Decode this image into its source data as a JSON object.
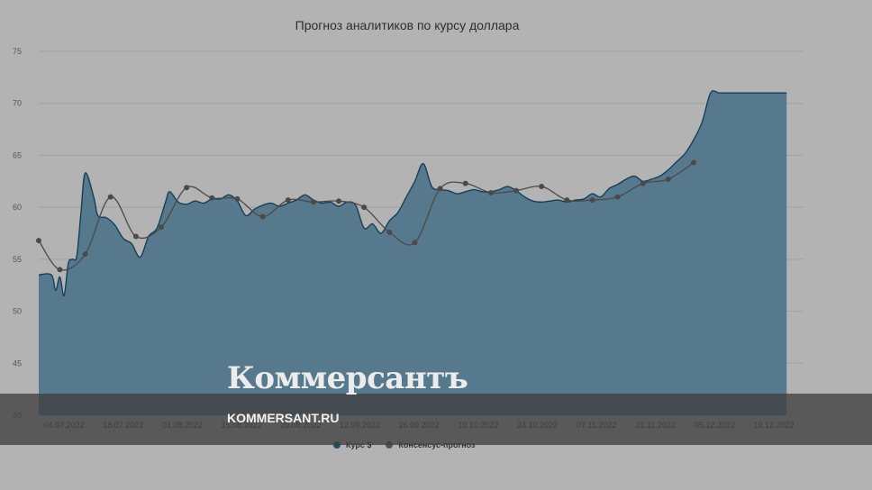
{
  "chart_data": {
    "type": "area",
    "title": "Прогноз аналитиков по курсу доллара",
    "ylim": [
      40,
      75
    ],
    "yticks": [
      40,
      45,
      50,
      55,
      60,
      65,
      70,
      75
    ],
    "grid": true,
    "legend_position": "bottom-center",
    "x_tick_labels": [
      "04.07.2022",
      "18.07.2022",
      "01.08.2022",
      "15.08.2022",
      "29.08.2022",
      "12.09.2022",
      "26.09.2022",
      "10.10.2022",
      "24.10.2022",
      "07.11.2022",
      "21.11.2022",
      "05.12.2022",
      "19.12.2022"
    ],
    "series": [
      {
        "name": "Курс $",
        "color": "#57798d",
        "x": [
          "2022-06-28",
          "2022-07-01",
          "2022-07-02",
          "2022-07-03",
          "2022-07-04",
          "2022-07-05",
          "2022-07-06",
          "2022-07-07",
          "2022-07-08",
          "2022-07-09",
          "2022-07-11",
          "2022-07-12",
          "2022-07-14",
          "2022-07-16",
          "2022-07-18",
          "2022-07-20",
          "2022-07-22",
          "2022-07-24",
          "2022-07-26",
          "2022-07-28",
          "2022-07-29",
          "2022-07-31",
          "2022-08-02",
          "2022-08-04",
          "2022-08-06",
          "2022-08-08",
          "2022-08-10",
          "2022-08-12",
          "2022-08-14",
          "2022-08-16",
          "2022-08-18",
          "2022-08-20",
          "2022-08-22",
          "2022-08-24",
          "2022-08-26",
          "2022-08-28",
          "2022-08-30",
          "2022-09-01",
          "2022-09-03",
          "2022-09-05",
          "2022-09-07",
          "2022-09-09",
          "2022-09-11",
          "2022-09-13",
          "2022-09-15",
          "2022-09-17",
          "2022-09-19",
          "2022-09-21",
          "2022-09-23",
          "2022-09-25",
          "2022-09-27",
          "2022-09-29",
          "2022-10-01",
          "2022-10-03",
          "2022-10-05",
          "2022-10-07",
          "2022-10-09",
          "2022-10-11",
          "2022-10-13",
          "2022-10-15",
          "2022-10-17",
          "2022-10-19",
          "2022-10-21",
          "2022-10-23",
          "2022-10-25",
          "2022-10-27",
          "2022-10-29",
          "2022-10-31",
          "2022-11-02",
          "2022-11-04",
          "2022-11-06",
          "2022-11-08",
          "2022-11-10",
          "2022-11-12",
          "2022-11-14",
          "2022-11-16",
          "2022-11-18",
          "2022-11-20",
          "2022-11-22",
          "2022-11-24",
          "2022-11-26",
          "2022-11-28",
          "2022-11-30",
          "2022-12-02",
          "2022-12-04",
          "2022-12-06",
          "2022-12-08",
          "2022-12-10",
          "2022-12-12",
          "2022-12-14",
          "2022-12-16",
          "2022-12-18",
          "2022-12-20",
          "2022-12-22",
          "2022-12-23"
        ],
        "values": [
          53.5,
          53.5,
          52.0,
          53.3,
          51.5,
          54.6,
          55.0,
          55.3,
          59.5,
          63.3,
          61.0,
          59.2,
          59.0,
          58.3,
          57.0,
          56.5,
          55.2,
          57.2,
          58.0,
          60.5,
          61.5,
          60.5,
          60.3,
          60.6,
          60.4,
          60.8,
          60.8,
          61.2,
          60.6,
          59.2,
          59.8,
          60.2,
          60.4,
          60.1,
          60.4,
          60.7,
          61.2,
          60.7,
          60.4,
          60.5,
          60.1,
          60.5,
          60.2,
          58.0,
          58.4,
          57.5,
          58.7,
          59.5,
          61.0,
          62.5,
          64.2,
          62.0,
          61.7,
          61.6,
          61.3,
          61.5,
          61.7,
          61.5,
          61.5,
          61.7,
          62.0,
          61.6,
          61.0,
          60.6,
          60.5,
          60.6,
          60.7,
          60.5,
          60.7,
          60.8,
          61.3,
          61.0,
          61.8,
          62.2,
          62.7,
          63.0,
          62.5,
          62.7,
          63.0,
          63.6,
          64.4,
          65.2,
          66.5,
          68.2,
          71.0,
          71.0,
          71.0,
          71.0,
          71.0,
          71.0,
          71.0,
          71.0,
          71.0,
          71.0,
          71.0
        ]
      },
      {
        "name": "Консенсус-прогноз",
        "color": "#555555",
        "x": [
          "2022-06-28",
          "2022-07-03",
          "2022-07-09",
          "2022-07-15",
          "2022-07-21",
          "2022-07-27",
          "2022-08-02",
          "2022-08-08",
          "2022-08-14",
          "2022-08-20",
          "2022-08-26",
          "2022-09-01",
          "2022-09-07",
          "2022-09-13",
          "2022-09-19",
          "2022-09-25",
          "2022-10-01",
          "2022-10-07",
          "2022-10-13",
          "2022-10-19",
          "2022-10-25",
          "2022-10-31",
          "2022-11-06",
          "2022-11-12",
          "2022-11-18",
          "2022-11-24",
          "2022-11-30",
          "2022-12-06",
          "2022-12-12",
          "2022-12-18",
          "2022-12-24"
        ],
        "values": [
          56.8,
          54.0,
          55.5,
          61.0,
          57.2,
          58.1,
          61.9,
          60.9,
          60.8,
          59.1,
          60.7,
          60.5,
          60.6,
          60.0,
          57.6,
          56.6,
          61.8,
          62.3,
          61.4,
          61.6,
          62.0,
          60.7,
          60.7,
          61.0,
          62.3,
          62.7,
          64.3,
          null,
          null,
          null,
          null
        ]
      }
    ]
  },
  "legend": {
    "item1": "Курс $",
    "item2": "Консенсус-прогноз"
  },
  "watermark": {
    "logo": "Коммерсантъ",
    "url": "KOMMERSANT.RU"
  }
}
